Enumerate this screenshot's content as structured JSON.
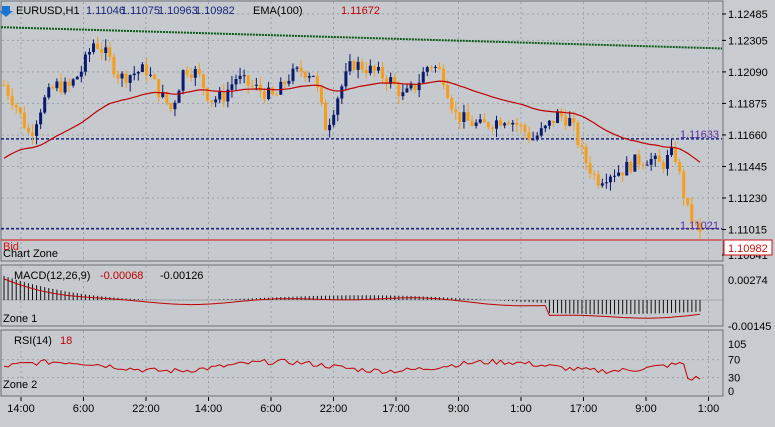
{
  "main": {
    "symbol": "EURUSD,H1",
    "ohlc": [
      "1.11046",
      "1.11075",
      "1.10963",
      "1.10982"
    ],
    "ema_label": "EMA(100)",
    "ema_value": "1.11672",
    "price_labels": [
      "1.12485",
      "1.12305",
      "1.12090",
      "1.11875",
      "1.11660",
      "1.11445",
      "1.11230",
      "1.11015",
      "1.10841"
    ],
    "price_range": [
      1.10841,
      1.12485
    ],
    "trendline": [
      1.12395,
      1.1225
    ],
    "hline_upper": {
      "value": 1.11633,
      "label": "1.11633"
    },
    "hline_lower": {
      "value": 1.11021,
      "label": "1.11021"
    },
    "bid_label": "Bid",
    "current_price": "1.10982",
    "zone_label": "Chart Zone",
    "colors": {
      "up": "#0a1a6e",
      "down": "#f59e1b",
      "ema": "#c00000",
      "trend": "#0a5a16",
      "hline": "#1a237e",
      "bid": "#d01010"
    }
  },
  "macd": {
    "label": "MACD(12,26,9)",
    "value_main": "-0.00068",
    "value_signal": "-0.00126",
    "scale_labels": [
      "0.00274",
      "-0.00145"
    ],
    "zone_label": "Zone 1"
  },
  "rsi": {
    "label": "RSI(14)",
    "value": "18",
    "scale_labels": [
      "105",
      "70",
      "30",
      "0"
    ],
    "zone_label": "Zone 2"
  },
  "time_axis": [
    "14:00",
    "6:00",
    "22:00",
    "14:00",
    "6:00",
    "22:00",
    "17:00",
    "9:00",
    "1:00",
    "17:00",
    "9:00",
    "1:00"
  ],
  "chart_data": {
    "type": "candlestick",
    "approx_close_path": [
      1.12,
      1.1185,
      1.1165,
      1.1188,
      1.12,
      1.1198,
      1.121,
      1.123,
      1.122,
      1.1205,
      1.1208,
      1.1211,
      1.1196,
      1.1183,
      1.1212,
      1.1208,
      1.119,
      1.1192,
      1.1205,
      1.12,
      1.1196,
      1.1191,
      1.1205,
      1.121,
      1.1208,
      1.117,
      1.1195,
      1.1215,
      1.1212,
      1.1208,
      1.1203,
      1.1192,
      1.12,
      1.1215,
      1.1208,
      1.118,
      1.1175,
      1.1172,
      1.1175,
      1.1178,
      1.1172,
      1.1163,
      1.117,
      1.118,
      1.1175,
      1.115,
      1.1135,
      1.114,
      1.1142,
      1.1148,
      1.115,
      1.1145,
      1.1155,
      1.1115,
      1.1098
    ]
  }
}
